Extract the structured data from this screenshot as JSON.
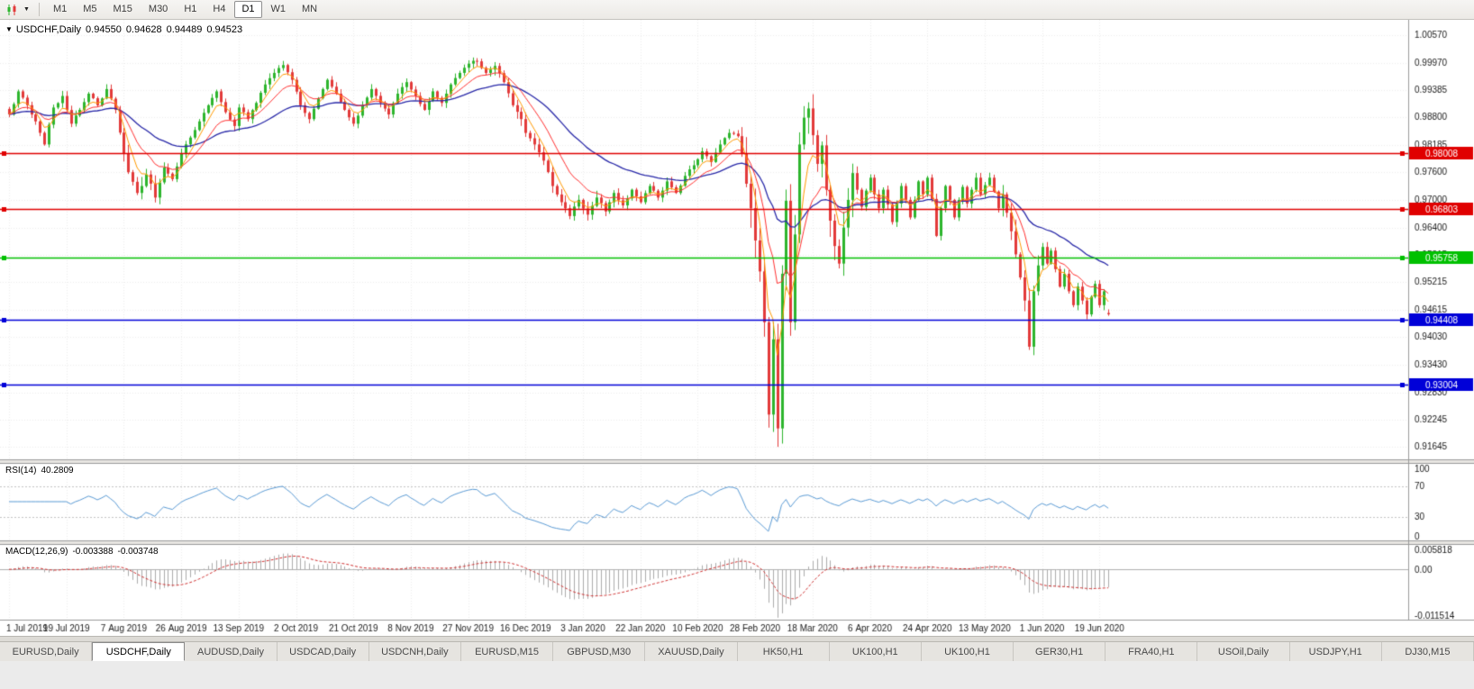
{
  "toolbar": {
    "chart_type_icon": "candlestick-chart",
    "dropdown_icon": "▼",
    "timeframes": [
      "M1",
      "M5",
      "M15",
      "M30",
      "H1",
      "H4",
      "D1",
      "W1",
      "MN"
    ],
    "active_timeframe": "D1"
  },
  "chart": {
    "dropdown_icon": "▼",
    "title_symbol": "USDCHF,Daily",
    "open": "0.94550",
    "high": "0.94628",
    "low": "0.94489",
    "close": "0.94523"
  },
  "rsi": {
    "name": "RSI(14)",
    "value": "40.2809",
    "scale_labels": [
      "100",
      "70",
      "30",
      "0"
    ],
    "dashed_levels": [
      70,
      30
    ]
  },
  "macd": {
    "name": "MACD(12,26,9)",
    "macd_value": "-0.003388",
    "signal_value": "-0.003748",
    "scale_top": "0.005818",
    "scale_zero": "0.00",
    "scale_bottom": "-0.011514"
  },
  "tabs": {
    "active_index": 1,
    "items": [
      "EURUSD,Daily",
      "USDCHF,Daily",
      "AUDUSD,Daily",
      "USDCAD,Daily",
      "USDCNH,Daily",
      "EURUSD,M15",
      "GBPUSD,M30",
      "XAUUSD,Daily",
      "HK50,H1",
      "UK100,H1",
      "UK100,H1",
      "GER30,H1",
      "FRA40,H1",
      "USOil,Daily",
      "USDJPY,H1",
      "DJ30,M15"
    ],
    "bottom_strip": ""
  },
  "chart_data": {
    "type": "candlestick",
    "symbol": "USDCHF",
    "timeframe": "Daily",
    "last_candle": {
      "o": 0.9455,
      "h": 0.94628,
      "l": 0.94489,
      "c": 0.94523
    },
    "y_axis_labels": [
      "1.00570",
      "0.99970",
      "0.99385",
      "0.98800",
      "0.98185",
      "0.97600",
      "0.97000",
      "0.96400",
      "0.95815",
      "0.95215",
      "0.94615",
      "0.94030",
      "0.93430",
      "0.92830",
      "0.92245",
      "0.91645"
    ],
    "y_range": {
      "max": 1.009,
      "min": 0.9138
    },
    "x_axis": {
      "labels": [
        "1 Jul 2019",
        "19 Jul 2019",
        "7 Aug 2019",
        "26 Aug 2019",
        "13 Sep 2019",
        "2 Oct 2019",
        "21 Oct 2019",
        "8 Nov 2019",
        "27 Nov 2019",
        "16 Dec 2019",
        "3 Jan 2020",
        "22 Jan 2020",
        "10 Feb 2020",
        "28 Feb 2020",
        "18 Mar 2020",
        "6 Apr 2020",
        "24 Apr 2020",
        "13 May 2020",
        "1 Jun 2020",
        "19 Jun 2020"
      ],
      "days_per_label": 13
    },
    "h_lines": [
      {
        "price": 0.98008,
        "label": "0.98008",
        "color": "#E00000"
      },
      {
        "price": 0.96803,
        "label": "0.96803",
        "color": "#E00000"
      },
      {
        "price": 0.95758,
        "label": "0.95758",
        "color": "#00C000"
      },
      {
        "price": 0.94408,
        "label": "0.94408",
        "color": "#0000D8"
      },
      {
        "price": 0.93004,
        "label": "0.93004",
        "color": "#0000D8"
      }
    ],
    "price_anchors": [
      [
        0,
        0.9885
      ],
      [
        2,
        0.9935
      ],
      [
        4,
        0.9905
      ],
      [
        6,
        0.987
      ],
      [
        8,
        0.982
      ],
      [
        10,
        0.99
      ],
      [
        12,
        0.9925
      ],
      [
        14,
        0.9865
      ],
      [
        16,
        0.9895
      ],
      [
        18,
        0.993
      ],
      [
        20,
        0.9905
      ],
      [
        22,
        0.994
      ],
      [
        24,
        0.9895
      ],
      [
        26,
        0.98
      ],
      [
        27,
        0.976
      ],
      [
        29,
        0.9715
      ],
      [
        31,
        0.9755
      ],
      [
        33,
        0.9705
      ],
      [
        35,
        0.977
      ],
      [
        37,
        0.9745
      ],
      [
        39,
        0.98
      ],
      [
        41,
        0.9835
      ],
      [
        43,
        0.987
      ],
      [
        45,
        0.9905
      ],
      [
        47,
        0.9935
      ],
      [
        49,
        0.989
      ],
      [
        51,
        0.986
      ],
      [
        52,
        0.99
      ],
      [
        54,
        0.9875
      ],
      [
        56,
        0.991
      ],
      [
        58,
        0.995
      ],
      [
        60,
        0.9975
      ],
      [
        62,
        0.9992
      ],
      [
        64,
        0.996
      ],
      [
        66,
        0.9905
      ],
      [
        68,
        0.9875
      ],
      [
        70,
        0.992
      ],
      [
        72,
        0.996
      ],
      [
        74,
        0.993
      ],
      [
        76,
        0.9895
      ],
      [
        78,
        0.9865
      ],
      [
        80,
        0.9905
      ],
      [
        82,
        0.994
      ],
      [
        84,
        0.991
      ],
      [
        86,
        0.9885
      ],
      [
        88,
        0.993
      ],
      [
        90,
        0.9955
      ],
      [
        92,
        0.9925
      ],
      [
        94,
        0.9895
      ],
      [
        96,
        0.9935
      ],
      [
        98,
        0.991
      ],
      [
        100,
        0.995
      ],
      [
        102,
        0.9975
      ],
      [
        104,
        0.9995
      ],
      [
        106,
        1.0
      ],
      [
        108,
        0.9975
      ],
      [
        110,
        0.999
      ],
      [
        112,
        0.9955
      ],
      [
        114,
        0.9905
      ],
      [
        116,
        0.9875
      ],
      [
        117,
        0.9845
      ],
      [
        119,
        0.982
      ],
      [
        121,
        0.9785
      ],
      [
        123,
        0.973
      ],
      [
        125,
        0.9695
      ],
      [
        127,
        0.9665
      ],
      [
        129,
        0.97
      ],
      [
        131,
        0.9668
      ],
      [
        133,
        0.9705
      ],
      [
        135,
        0.9675
      ],
      [
        137,
        0.9715
      ],
      [
        139,
        0.9688
      ],
      [
        141,
        0.9722
      ],
      [
        143,
        0.9695
      ],
      [
        145,
        0.973
      ],
      [
        147,
        0.9705
      ],
      [
        149,
        0.974
      ],
      [
        151,
        0.9715
      ],
      [
        153,
        0.9752
      ],
      [
        155,
        0.9775
      ],
      [
        157,
        0.9805
      ],
      [
        159,
        0.9782
      ],
      [
        161,
        0.982
      ],
      [
        163,
        0.9845
      ],
      [
        165,
        0.9838
      ],
      [
        166,
        0.98
      ],
      [
        167,
        0.9735
      ],
      [
        168,
        0.9682
      ],
      [
        169,
        0.9612
      ],
      [
        170,
        0.9545
      ],
      [
        171,
        0.9435
      ],
      [
        172,
        0.9235
      ],
      [
        173,
        0.9398
      ],
      [
        174,
        0.9205
      ],
      [
        175,
        0.954
      ],
      [
        176,
        0.9698
      ],
      [
        177,
        0.9435
      ],
      [
        178,
        0.9625
      ],
      [
        179,
        0.982
      ],
      [
        180,
        0.9878
      ],
      [
        181,
        0.9898
      ],
      [
        182,
        0.984
      ],
      [
        183,
        0.9778
      ],
      [
        184,
        0.9818
      ],
      [
        185,
        0.9722
      ],
      [
        186,
        0.9655
      ],
      [
        187,
        0.96
      ],
      [
        188,
        0.9562
      ],
      [
        189,
        0.964
      ],
      [
        190,
        0.97
      ],
      [
        191,
        0.9758
      ],
      [
        192,
        0.9722
      ],
      [
        193,
        0.9685
      ],
      [
        194,
        0.972
      ],
      [
        195,
        0.9748
      ],
      [
        196,
        0.9712
      ],
      [
        197,
        0.9682
      ],
      [
        198,
        0.9722
      ],
      [
        199,
        0.969
      ],
      [
        200,
        0.9652
      ],
      [
        201,
        0.9692
      ],
      [
        202,
        0.973
      ],
      [
        203,
        0.97
      ],
      [
        204,
        0.9662
      ],
      [
        205,
        0.97
      ],
      [
        206,
        0.974
      ],
      [
        207,
        0.9712
      ],
      [
        208,
        0.9748
      ],
      [
        209,
        0.9702
      ],
      [
        210,
        0.9622
      ],
      [
        211,
        0.9682
      ],
      [
        212,
        0.973
      ],
      [
        213,
        0.97
      ],
      [
        214,
        0.9662
      ],
      [
        215,
        0.97
      ],
      [
        216,
        0.9728
      ],
      [
        217,
        0.9692
      ],
      [
        218,
        0.9722
      ],
      [
        219,
        0.9748
      ],
      [
        220,
        0.9712
      ],
      [
        221,
        0.9732
      ],
      [
        222,
        0.9748
      ],
      [
        223,
        0.9718
      ],
      [
        224,
        0.9682
      ],
      [
        225,
        0.9712
      ],
      [
        226,
        0.9672
      ],
      [
        227,
        0.9632
      ],
      [
        228,
        0.9582
      ],
      [
        229,
        0.9532
      ],
      [
        230,
        0.9482
      ],
      [
        231,
        0.9382
      ],
      [
        232,
        0.9502
      ],
      [
        233,
        0.9558
      ],
      [
        234,
        0.9598
      ],
      [
        235,
        0.9562
      ],
      [
        236,
        0.959
      ],
      [
        237,
        0.955
      ],
      [
        238,
        0.9512
      ],
      [
        239,
        0.954
      ],
      [
        240,
        0.9502
      ],
      [
        241,
        0.9472
      ],
      [
        242,
        0.9512
      ],
      [
        243,
        0.9482
      ],
      [
        244,
        0.9452
      ],
      [
        245,
        0.949
      ],
      [
        246,
        0.9518
      ],
      [
        247,
        0.9472
      ],
      [
        248,
        0.9502
      ],
      [
        249,
        0.9452
      ]
    ],
    "volatility_zones": [
      [
        26,
        34,
        0.0022
      ],
      [
        104,
        112,
        0.0015
      ],
      [
        114,
        133,
        0.0016
      ],
      [
        166,
        192,
        0.0045
      ],
      [
        225,
        234,
        0.0028
      ]
    ],
    "default_volatility": 0.0012,
    "wick_overrides": [
      [
        174,
        "low",
        0.9165
      ],
      [
        106,
        "high",
        1.0007
      ],
      [
        231,
        "low",
        0.9375
      ]
    ],
    "indicators": {
      "ma_fast": {
        "period": 5,
        "color": "#FF9A00"
      },
      "ma_mid": {
        "period": 12,
        "color": "#FF3030"
      },
      "ma_slow": {
        "period": 34,
        "color": "#2828A8"
      },
      "rsi": {
        "period": 14,
        "current": 40.2809,
        "color": "#5B9BD5"
      },
      "macd": {
        "fast": 12,
        "slow": 26,
        "signal": 9,
        "current_macd": -0.003388,
        "current_signal": -0.003748,
        "scale_max": 0.005818,
        "scale_min": -0.011514,
        "hist_color": "#ABABAB",
        "signal_color": "#D03030"
      }
    },
    "colors": {
      "up": "#2DB52D",
      "down": "#E23A3A",
      "grid": "#ECECEC",
      "axis_text": "#1a1a1a",
      "axis_line": "#9a9a9a"
    }
  }
}
